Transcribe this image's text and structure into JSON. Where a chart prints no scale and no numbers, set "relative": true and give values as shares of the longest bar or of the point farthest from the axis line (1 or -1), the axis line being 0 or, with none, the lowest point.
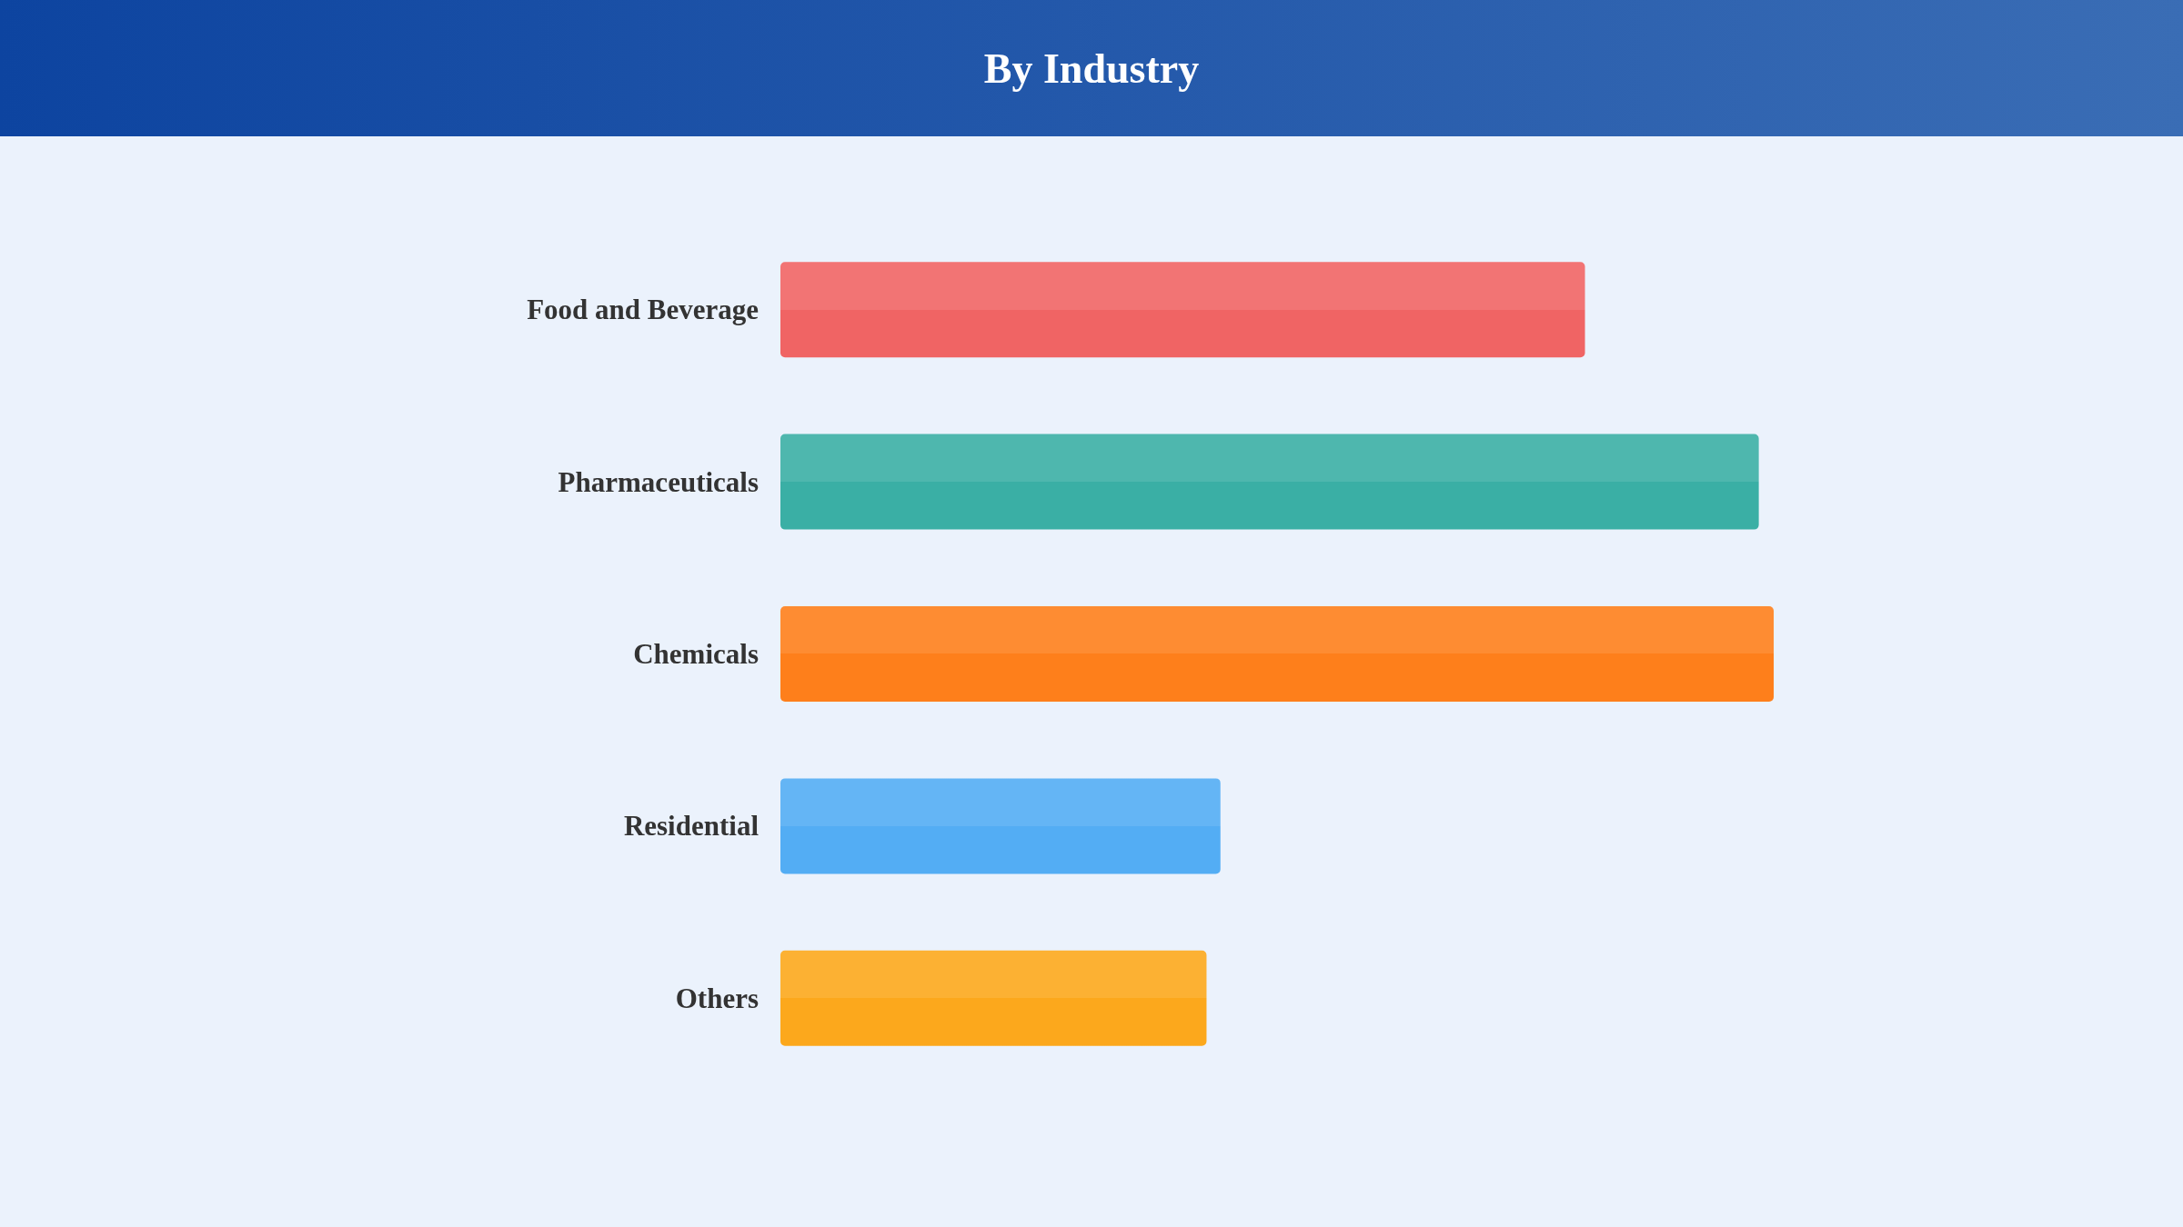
{
  "chart_data": {
    "type": "bar",
    "title": "By Industry",
    "orientation": "horizontal",
    "relative": true,
    "categories": [
      "Food and Beverage",
      "Pharmaceuticals",
      "Chemicals",
      "Residential",
      "Others"
    ],
    "values": [
      0.81,
      0.985,
      1,
      0.443,
      0.429
    ],
    "colors": [
      "#f06464",
      "#3aafa5",
      "#fe7f1b",
      "#53adf4",
      "#fca81c"
    ]
  }
}
